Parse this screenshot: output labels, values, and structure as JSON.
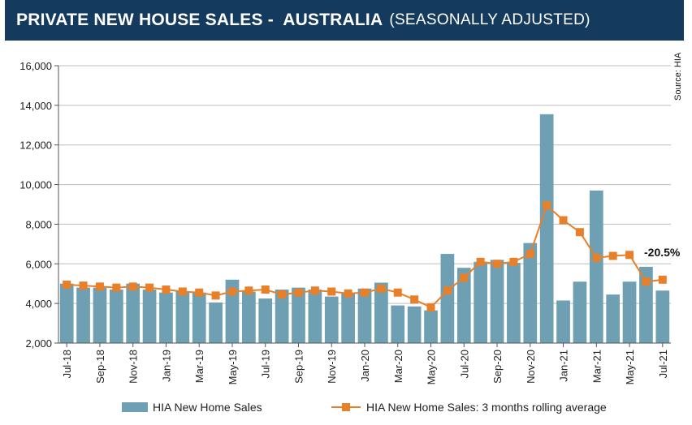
{
  "header": {
    "title": "PRIVATE NEW HOUSE SALES -  AUSTRALIA",
    "subtitle": "(SEASONALLY ADJUSTED)"
  },
  "source_note": "Source: HIA",
  "colors": {
    "bar": "#6f9fb2",
    "line": "#e8802a",
    "title_bg": "#143a5e"
  },
  "chart_data": {
    "type": "bar",
    "title": "PRIVATE NEW HOUSE SALES - AUSTRALIA (SEASONALLY ADJUSTED)",
    "xlabel": "",
    "ylabel": "",
    "ylim": [
      2000,
      16000
    ],
    "y_ticks": [
      "2,000",
      "4,000",
      "6,000",
      "8,000",
      "10,000",
      "12,000",
      "14,000",
      "16,000"
    ],
    "y_tick_values": [
      2000,
      4000,
      6000,
      8000,
      10000,
      12000,
      14000,
      16000
    ],
    "categories": [
      "Jul-18",
      "Aug-18",
      "Sep-18",
      "Oct-18",
      "Nov-18",
      "Dec-18",
      "Jan-19",
      "Feb-19",
      "Mar-19",
      "Apr-19",
      "May-19",
      "Jun-19",
      "Jul-19",
      "Aug-19",
      "Sep-19",
      "Oct-19",
      "Nov-19",
      "Dec-19",
      "Jan-20",
      "Feb-20",
      "Mar-20",
      "Apr-20",
      "May-20",
      "Jun-20",
      "Jul-20",
      "Aug-20",
      "Sep-20",
      "Oct-20",
      "Nov-20",
      "Dec-20",
      "Jan-21",
      "Feb-21",
      "Mar-21",
      "Apr-21",
      "May-21",
      "Jun-21",
      "Jul-21"
    ],
    "x_tick_labels": [
      "Jul-18",
      "Sep-18",
      "Nov-18",
      "Jan-19",
      "Mar-19",
      "May-19",
      "Jul-19",
      "Sep-19",
      "Nov-19",
      "Jan-20",
      "Mar-20",
      "May-20",
      "Jul-20",
      "Sep-20",
      "Nov-20",
      "Jan-21",
      "Mar-21",
      "May-21",
      "Jul-21"
    ],
    "series": [
      {
        "name": "HIA New Home Sales",
        "kind": "bar",
        "values": [
          5000,
          4800,
          4800,
          4700,
          5000,
          4700,
          4550,
          4600,
          4550,
          4050,
          5200,
          4600,
          4250,
          4700,
          4800,
          4700,
          4350,
          4500,
          4750,
          5050,
          3900,
          3850,
          3650,
          6500,
          5800,
          6100,
          6200,
          6050,
          7050,
          13550,
          4150,
          5100,
          9700,
          4450,
          5100,
          5850,
          4650
        ]
      },
      {
        "name": "HIA New Home Sales: 3 months rolling average",
        "kind": "line",
        "values": [
          4950,
          4900,
          4850,
          4800,
          4850,
          4800,
          4700,
          4600,
          4550,
          4400,
          4600,
          4650,
          4700,
          4450,
          4550,
          4650,
          4600,
          4500,
          4550,
          4750,
          4550,
          4200,
          3800,
          4650,
          5300,
          6100,
          6000,
          6100,
          6500,
          8950,
          8200,
          7600,
          6300,
          6400,
          6450,
          5100,
          5200
        ]
      }
    ],
    "legend": [
      "HIA New Home Sales",
      "HIA New Home Sales: 3 months rolling average"
    ],
    "legend_position": "bottom",
    "annotations": [
      {
        "text": "-20.5%",
        "category": "Jul-21"
      }
    ],
    "grid": true
  }
}
